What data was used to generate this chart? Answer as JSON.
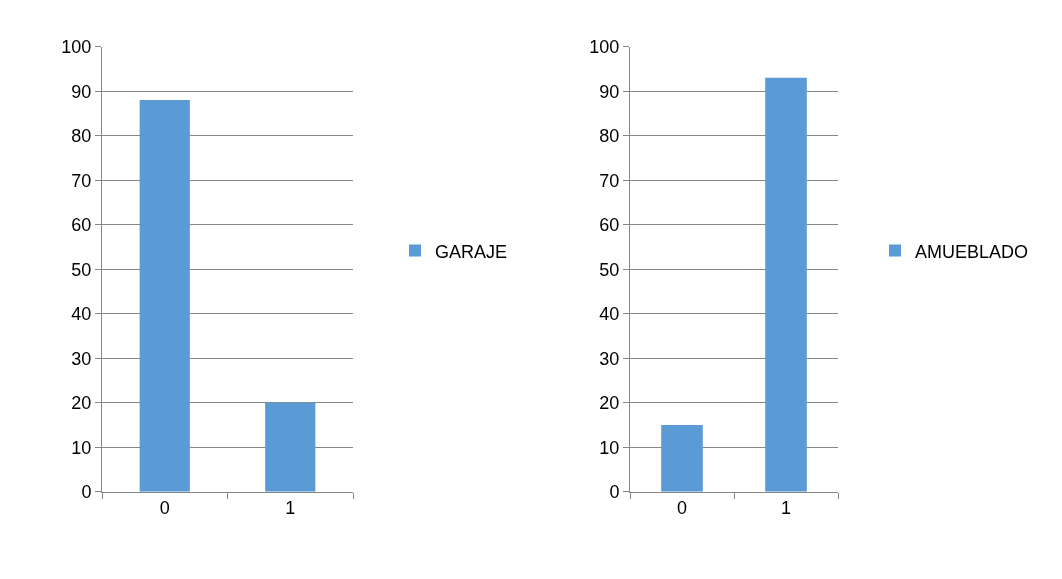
{
  "chart_data": [
    {
      "type": "bar",
      "categories": [
        "0",
        "1"
      ],
      "series": [
        {
          "name": "GARAJE",
          "color": "#5b9bd5",
          "values": [
            88,
            20
          ]
        }
      ],
      "ylim": [
        0,
        100
      ],
      "yticks": [
        0,
        10,
        20,
        30,
        40,
        50,
        60,
        70,
        80,
        90,
        100
      ],
      "grid": "y",
      "legend": "right"
    },
    {
      "type": "bar",
      "categories": [
        "0",
        "1"
      ],
      "series": [
        {
          "name": "AMUEBLADO",
          "color": "#5b9bd5",
          "values": [
            15,
            93
          ]
        }
      ],
      "ylim": [
        0,
        100
      ],
      "yticks": [
        0,
        10,
        20,
        30,
        40,
        50,
        60,
        70,
        80,
        90,
        100
      ],
      "grid": "y",
      "legend": "right"
    }
  ]
}
